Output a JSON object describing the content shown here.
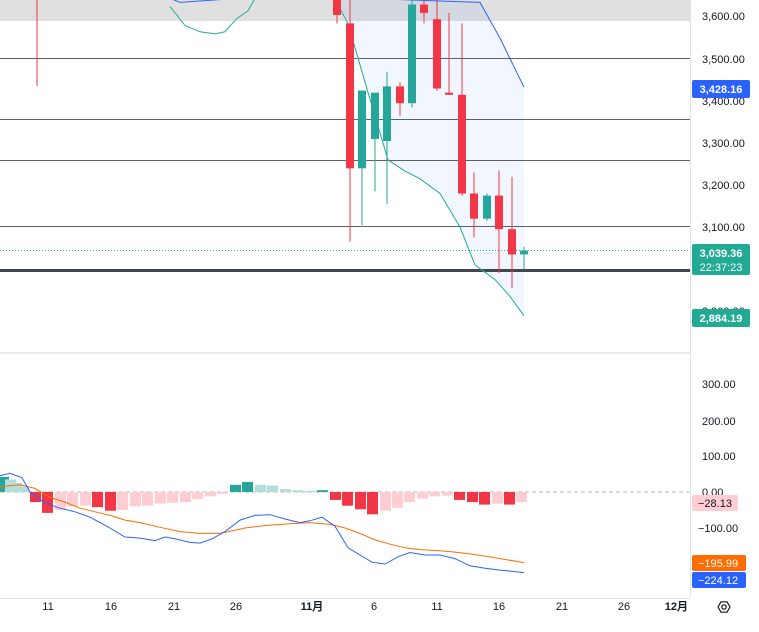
{
  "colors": {
    "up": "#26a69a",
    "down": "#f23645",
    "bb_lines": "#22ab94",
    "bb_upper": "#2962ff",
    "macd_line": "#2962ff",
    "signal_line": "#ff6d00",
    "hist_pos_strong": "#26a69a",
    "hist_pos_weak": "#b2dfdb",
    "hist_neg_strong": "#f23645",
    "hist_neg_weak": "#ffcdd2"
  },
  "price_axis": {
    "ticks": [
      "3,600.00",
      "3,500.00",
      "3,400.00",
      "3,300.00",
      "3,200.00",
      "3,100.00",
      "2,900.00"
    ]
  },
  "price_labels": [
    {
      "text": "3,428.16",
      "color": "#2962ff",
      "value": 3428.16
    },
    {
      "text": "3,039.36",
      "color": "#22ab94",
      "value": 3039.36
    },
    {
      "text": "22:37:23",
      "color": "#22ab94",
      "value": 3016
    },
    {
      "text": "2,884.19",
      "color": "#22ab94",
      "value": 2884.19
    }
  ],
  "macd_axis": {
    "ticks": [
      "300.00",
      "200.00",
      "100.00",
      "0.00",
      "−100.00"
    ]
  },
  "macd_labels": [
    {
      "text": "−28.13",
      "color": "#ffcdd2",
      "text_color": "#131722",
      "value": -28.13
    },
    {
      "text": "−195.99",
      "color": "#ff6d00",
      "text_color": "#ffffff",
      "value": -195.99
    },
    {
      "text": "−224.12",
      "color": "#2962ff",
      "text_color": "#ffffff",
      "value": -224.12
    }
  ],
  "time_axis": {
    "ticks": [
      "11",
      "16",
      "21",
      "26",
      "11月",
      "6",
      "11",
      "16",
      "21",
      "26",
      "12月"
    ]
  },
  "settings_icon": "settings-icon",
  "chart_data": {
    "type": "candlestick",
    "horizontal_levels": [
      3498,
      3352,
      3255,
      3098,
      2993
    ],
    "price_range": [
      2790,
      3640
    ],
    "candles": [
      {
        "x": 337,
        "o": 3640,
        "h": 3640,
        "l": 3580,
        "c": 3600
      },
      {
        "x": 350,
        "o": 3580,
        "h": 3640,
        "l": 3060,
        "c": 3235
      },
      {
        "x": 362,
        "o": 3235,
        "h": 3420,
        "l": 3100,
        "c": 3420
      },
      {
        "x": 375,
        "o": 3305,
        "h": 3415,
        "l": 3180,
        "c": 3415
      },
      {
        "x": 387,
        "o": 3300,
        "h": 3465,
        "l": 3150,
        "c": 3430
      },
      {
        "x": 400,
        "o": 3430,
        "h": 3440,
        "l": 3360,
        "c": 3390
      },
      {
        "x": 412,
        "o": 3390,
        "h": 3640,
        "l": 3380,
        "c": 3625
      },
      {
        "x": 424,
        "o": 3625,
        "h": 3640,
        "l": 3580,
        "c": 3605
      },
      {
        "x": 437,
        "o": 3590,
        "h": 3640,
        "l": 3420,
        "c": 3425
      },
      {
        "x": 449,
        "o": 3415,
        "h": 3605,
        "l": 3410,
        "c": 3410
      },
      {
        "x": 462,
        "o": 3410,
        "h": 3580,
        "l": 3170,
        "c": 3175
      },
      {
        "x": 474,
        "o": 3175,
        "h": 3225,
        "l": 3070,
        "c": 3115
      },
      {
        "x": 487,
        "o": 3115,
        "h": 3175,
        "l": 3110,
        "c": 3170
      },
      {
        "x": 499,
        "o": 3170,
        "h": 3230,
        "l": 2985,
        "c": 3090
      },
      {
        "x": 512,
        "o": 3090,
        "h": 3215,
        "l": 2950,
        "c": 3030
      },
      {
        "x": 524,
        "o": 3030,
        "h": 3048,
        "l": 2995,
        "c": 3039
      }
    ],
    "bollinger_upper": [
      [
        155,
        3650
      ],
      [
        170,
        3640
      ],
      [
        180,
        3630
      ],
      [
        240,
        3640
      ],
      [
        252,
        3640
      ],
      [
        346,
        3640
      ],
      [
        360,
        3640
      ],
      [
        480,
        3630
      ],
      [
        500,
        3545
      ],
      [
        524,
        3428
      ]
    ],
    "bollinger_lower": [
      [
        170,
        3620
      ],
      [
        185,
        3575
      ],
      [
        200,
        3560
      ],
      [
        215,
        3555
      ],
      [
        225,
        3560
      ],
      [
        236,
        3590
      ],
      [
        248,
        3610
      ],
      [
        255,
        3640
      ],
      [
        334,
        3640
      ],
      [
        348,
        3580
      ],
      [
        365,
        3440
      ],
      [
        388,
        3255
      ],
      [
        404,
        3230
      ],
      [
        420,
        3210
      ],
      [
        440,
        3175
      ],
      [
        460,
        3095
      ],
      [
        475,
        3005
      ],
      [
        495,
        2970
      ],
      [
        510,
        2930
      ],
      [
        524,
        2884
      ]
    ],
    "macd_range": [
      -300,
      400
    ],
    "macd_bars": [
      {
        "x": 3,
        "v": 42
      },
      {
        "x": 10,
        "v": 35
      },
      {
        "x": 16,
        "v": 25
      },
      {
        "x": 23,
        "v": 15
      },
      {
        "x": 35,
        "v": -28
      },
      {
        "x": 47,
        "v": -58
      },
      {
        "x": 60,
        "v": -50
      },
      {
        "x": 72,
        "v": -40
      },
      {
        "x": 85,
        "v": -38
      },
      {
        "x": 97,
        "v": -42
      },
      {
        "x": 110,
        "v": -52
      },
      {
        "x": 122,
        "v": -50
      },
      {
        "x": 135,
        "v": -40
      },
      {
        "x": 147,
        "v": -38
      },
      {
        "x": 160,
        "v": -32
      },
      {
        "x": 172,
        "v": -30
      },
      {
        "x": 185,
        "v": -28
      },
      {
        "x": 197,
        "v": -20
      },
      {
        "x": 210,
        "v": -12
      },
      {
        "x": 222,
        "v": -5
      },
      {
        "x": 235,
        "v": 20
      },
      {
        "x": 247,
        "v": 28
      },
      {
        "x": 260,
        "v": 20
      },
      {
        "x": 272,
        "v": 18
      },
      {
        "x": 285,
        "v": 8
      },
      {
        "x": 297,
        "v": 5
      },
      {
        "x": 310,
        "v": 3
      },
      {
        "x": 322,
        "v": 5
      },
      {
        "x": 335,
        "v": -22
      },
      {
        "x": 347,
        "v": -38
      },
      {
        "x": 360,
        "v": -48
      },
      {
        "x": 372,
        "v": -62
      },
      {
        "x": 385,
        "v": -52
      },
      {
        "x": 397,
        "v": -44
      },
      {
        "x": 409,
        "v": -28
      },
      {
        "x": 422,
        "v": -18
      },
      {
        "x": 434,
        "v": -12
      },
      {
        "x": 447,
        "v": -10
      },
      {
        "x": 459,
        "v": -22
      },
      {
        "x": 472,
        "v": -28
      },
      {
        "x": 484,
        "v": -35
      },
      {
        "x": 497,
        "v": -32
      },
      {
        "x": 509,
        "v": -35
      },
      {
        "x": 521,
        "v": -28
      }
    ],
    "macd_line": [
      [
        0,
        45
      ],
      [
        10,
        52
      ],
      [
        22,
        40
      ],
      [
        30,
        0
      ],
      [
        45,
        -30
      ],
      [
        60,
        -45
      ],
      [
        75,
        -55
      ],
      [
        90,
        -70
      ],
      [
        100,
        -85
      ],
      [
        110,
        -100
      ],
      [
        125,
        -125
      ],
      [
        140,
        -128
      ],
      [
        155,
        -135
      ],
      [
        165,
        -125
      ],
      [
        175,
        -130
      ],
      [
        190,
        -140
      ],
      [
        200,
        -142
      ],
      [
        212,
        -130
      ],
      [
        225,
        -110
      ],
      [
        240,
        -78
      ],
      [
        255,
        -65
      ],
      [
        270,
        -63
      ],
      [
        285,
        -75
      ],
      [
        300,
        -85
      ],
      [
        310,
        -80
      ],
      [
        322,
        -70
      ],
      [
        335,
        -95
      ],
      [
        348,
        -155
      ],
      [
        360,
        -175
      ],
      [
        372,
        -195
      ],
      [
        385,
        -200
      ],
      [
        398,
        -180
      ],
      [
        410,
        -168
      ],
      [
        425,
        -175
      ],
      [
        440,
        -175
      ],
      [
        455,
        -185
      ],
      [
        470,
        -205
      ],
      [
        485,
        -212
      ],
      [
        500,
        -217
      ],
      [
        524,
        -224
      ]
    ],
    "signal_line": [
      [
        0,
        15
      ],
      [
        20,
        20
      ],
      [
        35,
        10
      ],
      [
        50,
        -15
      ],
      [
        65,
        -28
      ],
      [
        80,
        -45
      ],
      [
        95,
        -55
      ],
      [
        110,
        -65
      ],
      [
        125,
        -78
      ],
      [
        140,
        -85
      ],
      [
        160,
        -98
      ],
      [
        180,
        -110
      ],
      [
        200,
        -115
      ],
      [
        220,
        -115
      ],
      [
        245,
        -100
      ],
      [
        265,
        -93
      ],
      [
        290,
        -88
      ],
      [
        310,
        -85
      ],
      [
        330,
        -90
      ],
      [
        345,
        -100
      ],
      [
        360,
        -115
      ],
      [
        375,
        -133
      ],
      [
        390,
        -145
      ],
      [
        405,
        -155
      ],
      [
        420,
        -160
      ],
      [
        440,
        -163
      ],
      [
        455,
        -167
      ],
      [
        470,
        -172
      ],
      [
        485,
        -178
      ],
      [
        500,
        -185
      ],
      [
        524,
        -196
      ]
    ]
  }
}
